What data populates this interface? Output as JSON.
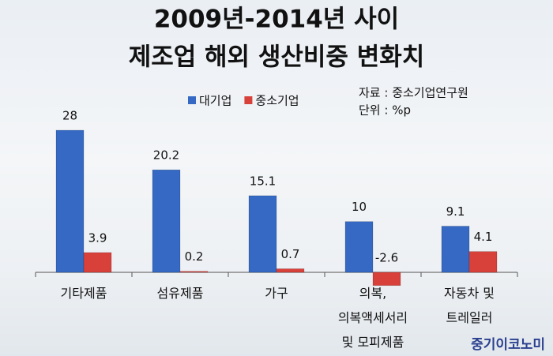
{
  "chart_data": {
    "type": "bar",
    "title": [
      "2009년-2014년 사이",
      "제조업 해외 생산비중 변화치"
    ],
    "source": "자료 : 중소기업연구원",
    "unit": "단위 : %p",
    "watermark": "중기이코노미",
    "categories": [
      "기타제품",
      "섬유제품",
      "가구",
      "의복,\n의복액세서리\n및 모피제품",
      "자동차 및\n트레일러"
    ],
    "series": [
      {
        "name": "대기업",
        "color": "#3569c4",
        "values": [
          28,
          20.2,
          15.1,
          10,
          9.1
        ]
      },
      {
        "name": "중소기업",
        "color": "#d8403a",
        "values": [
          3.9,
          0.2,
          0.7,
          -2.6,
          4.1
        ]
      }
    ],
    "legend": "top"
  }
}
